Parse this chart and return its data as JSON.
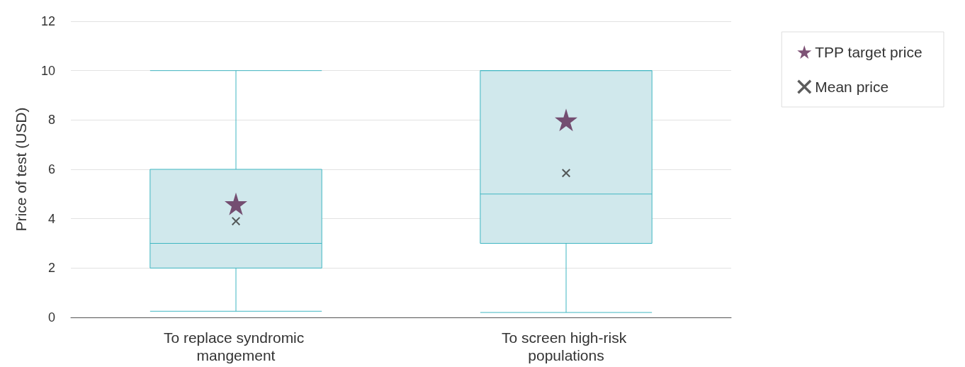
{
  "chart_data": {
    "type": "box",
    "ylabel": "Price of test (USD)",
    "categories": [
      "To replace syndromic mangement",
      "To screen high-risk populations"
    ],
    "ylim": [
      0,
      12
    ],
    "yticks": [
      0,
      2,
      4,
      6,
      8,
      10,
      12
    ],
    "grid": "y",
    "legend": "top right",
    "series": [
      {
        "color": "#d0e8ec",
        "boxes": [
          {
            "low": 0.25,
            "q1": 2,
            "median": 3,
            "q3": 6,
            "high": 10
          },
          {
            "low": 0.2,
            "q1": 3,
            "median": 5,
            "q3": 10,
            "high": 10
          }
        ]
      },
      {
        "type": "scatter",
        "name": "TPP target price",
        "color": "#5c2752",
        "marker": "star",
        "x": [
          "To replace syndromic mangement",
          "To screen high-risk populations"
        ],
        "values": [
          4.6,
          8.0
        ]
      },
      {
        "type": "scatter",
        "name": "Mean price",
        "color": "#333333",
        "marker": "cross",
        "x": [
          "To replace syndromic mangement",
          "To screen high-risk populations"
        ],
        "values": [
          3.9,
          5.85
        ]
      }
    ]
  }
}
